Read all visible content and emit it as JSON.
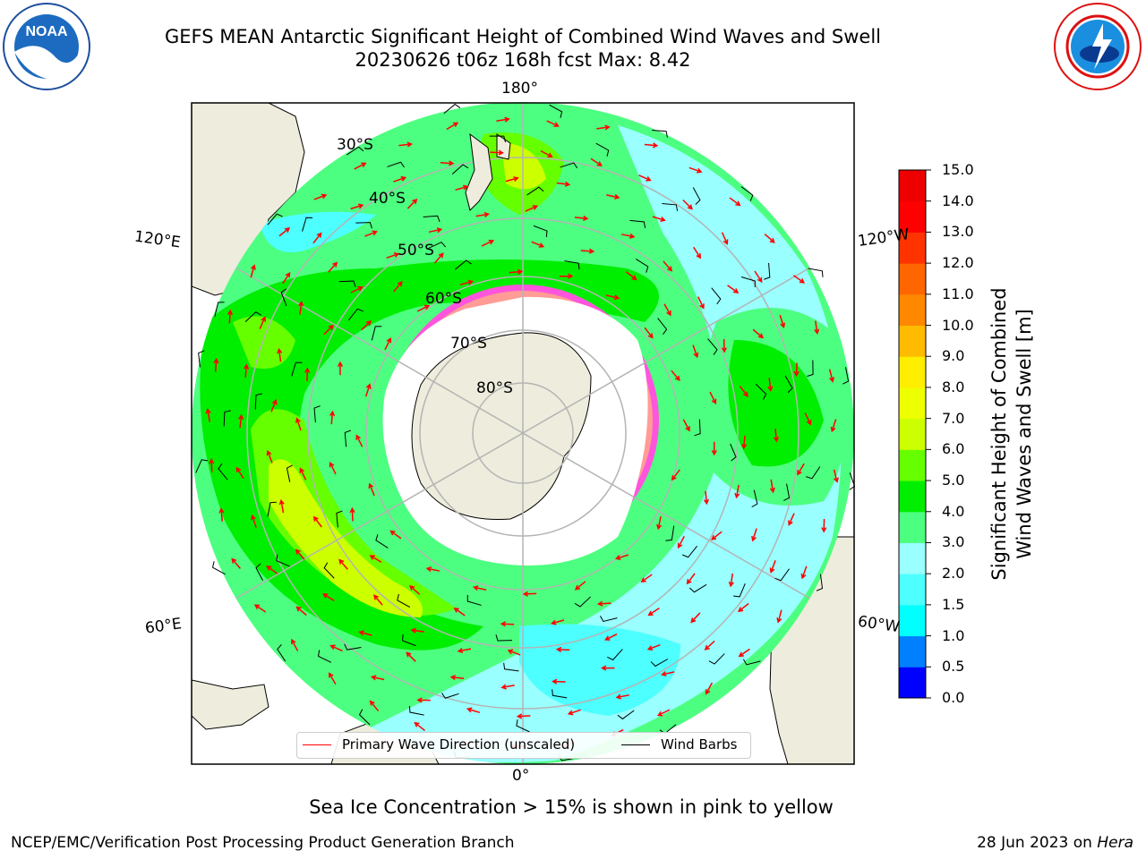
{
  "header": {
    "title_line1": "GEFS MEAN Antarctic Significant Height of Combined Wind Waves and Swell",
    "title_line2": "20230626 t06z 168h fcst   Max: 8.42"
  },
  "logos": {
    "left": {
      "name": "NOAA",
      "text": "NOAA",
      "ring_text": "NATIONAL OCEANIC AND ATMOSPHERIC ADMINISTRATION · U.S. DEPARTMENT OF COMMERCE"
    },
    "right": {
      "name": "National Weather Service",
      "ring_text": "NATIONAL WEATHER SERVICE"
    }
  },
  "map": {
    "projection": "south-polar-stereographic",
    "longitude_labels": {
      "top": "180°",
      "bottom": "0°",
      "upper_left": "120°E",
      "upper_right": "120°W",
      "lower_left": "60°E",
      "lower_right": "60°W"
    },
    "latitude_labels": [
      "30°S",
      "40°S",
      "50°S",
      "60°S",
      "70°S",
      "80°S"
    ],
    "colors": {
      "land": "#eeecdc",
      "ocean_mask": "#ffffff",
      "grid": "#b4b4b4",
      "wave_arrow": "#ff0000",
      "wind_barb": "#000000",
      "sea_ice": "#ff55dd"
    }
  },
  "legend": {
    "items": [
      {
        "label": "Primary Wave Direction (unscaled)",
        "color": "#ff0000"
      },
      {
        "label": "Wind Barbs",
        "color": "#000000"
      }
    ]
  },
  "colorbar": {
    "title_line1": "Significant Height of Combined",
    "title_line2": "Wind Waves and Swell [m]",
    "ticks": [
      "0.0",
      "0.5",
      "1.0",
      "1.5",
      "2.0",
      "3.0",
      "4.0",
      "5.0",
      "6.0",
      "7.0",
      "8.0",
      "9.0",
      "10.0",
      "11.0",
      "12.0",
      "13.0",
      "14.0",
      "15.0"
    ],
    "colors": [
      "#0000ff",
      "#007fff",
      "#00ffff",
      "#4dffff",
      "#99ffff",
      "#4dff80",
      "#00ee00",
      "#66ff00",
      "#ccff00",
      "#eeff00",
      "#ffee00",
      "#ffbb00",
      "#ff8800",
      "#ff6600",
      "#ff3300",
      "#ff0000",
      "#ee0000"
    ]
  },
  "footer": {
    "left": "NCEP/EMC/Verification Post Processing Product Generation Branch",
    "right_date": "28 Jun 2023 on ",
    "right_host": "Hera"
  },
  "caption": "Sea Ice Concentration > 15% is shown in pink to yellow"
}
